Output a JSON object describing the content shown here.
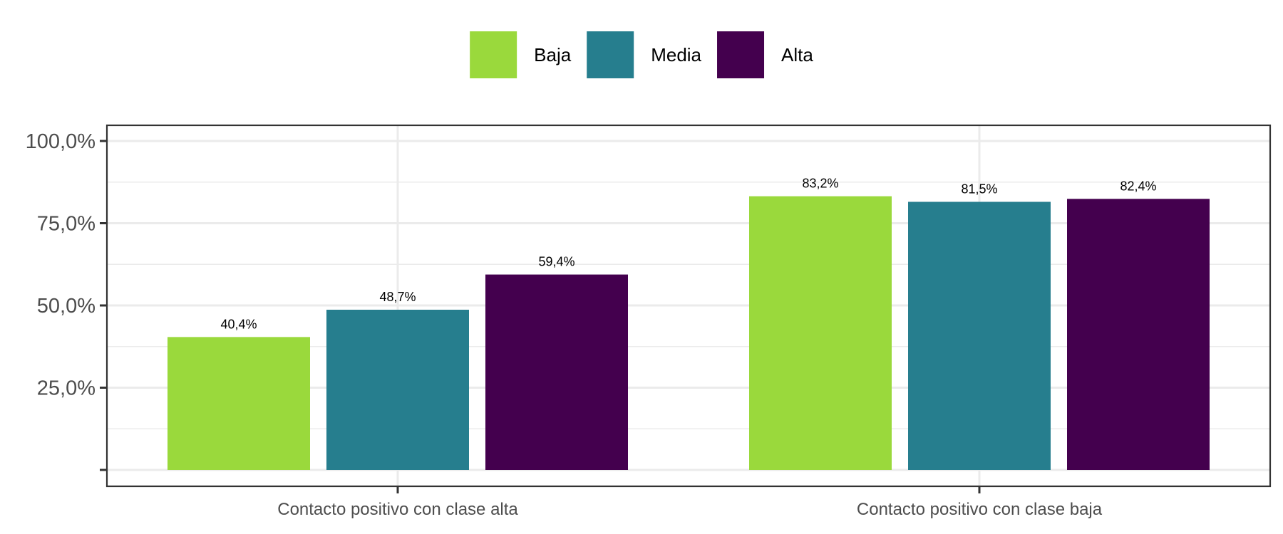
{
  "chart_data": {
    "type": "bar",
    "categories": [
      "Contacto positivo con clase alta",
      "Contacto positivo con clase baja"
    ],
    "series": [
      {
        "name": "Baja",
        "color": "#9ad93c",
        "values": [
          40.4,
          83.2
        ],
        "labels": [
          "40,4%",
          "83,2%"
        ]
      },
      {
        "name": "Media",
        "color": "#267e8e",
        "values": [
          48.7,
          81.5
        ],
        "labels": [
          "48,7%",
          "81,5%"
        ]
      },
      {
        "name": "Alta",
        "color": "#44004e",
        "values": [
          59.4,
          82.4
        ],
        "labels": [
          "59,4%",
          "82,4%"
        ]
      }
    ],
    "ylim": [
      0,
      105
    ],
    "y_ticks": [
      {
        "value": 0,
        "label": ""
      },
      {
        "value": 25,
        "label": "25,0%"
      },
      {
        "value": 50,
        "label": "50,0%"
      },
      {
        "value": 75,
        "label": "75,0%"
      },
      {
        "value": 100,
        "label": "100,0%"
      }
    ],
    "title": "",
    "xlabel": "",
    "ylabel": "",
    "legend_position": "top",
    "grid": true
  }
}
